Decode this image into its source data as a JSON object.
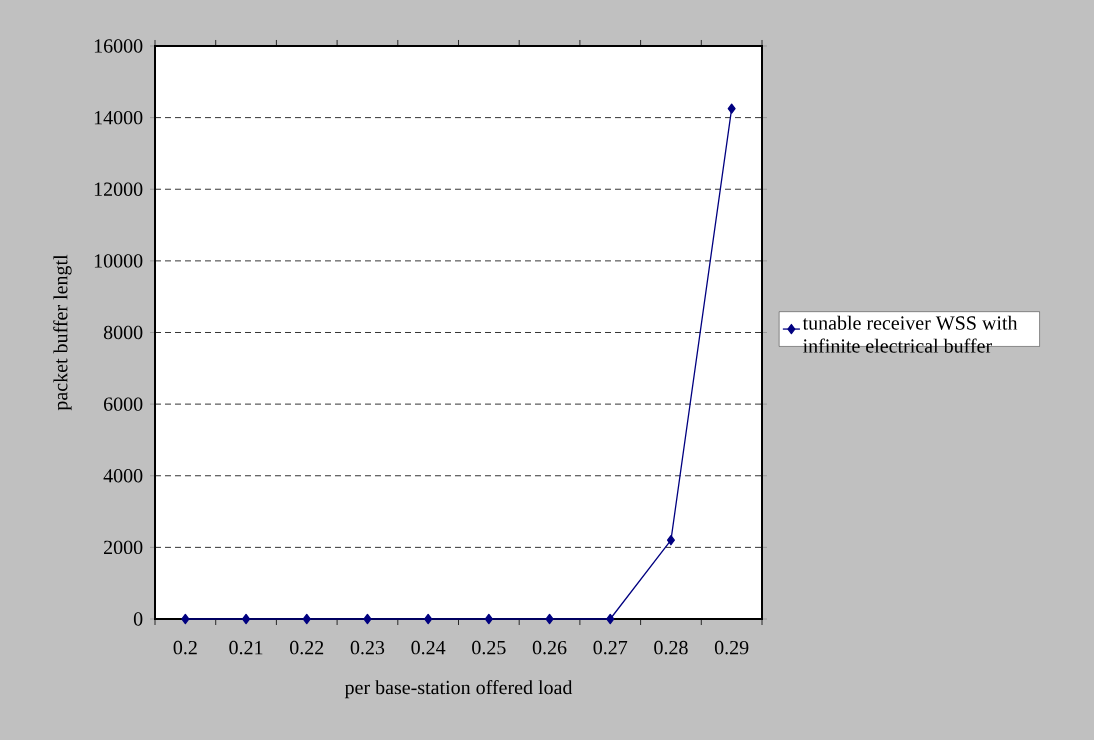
{
  "chart_data": {
    "type": "line",
    "xlabel": "per base-station offered load",
    "ylabel": "packet buffer lengtl",
    "categories": [
      "0.2",
      "0.21",
      "0.22",
      "0.23",
      "0.24",
      "0.25",
      "0.26",
      "0.27",
      "0.28",
      "0.29"
    ],
    "series": [
      {
        "name": "tunable receiver WSS with infinite electrical buffer",
        "color": "#000080",
        "values": [
          0,
          0,
          0,
          0,
          0,
          0,
          0,
          0,
          2200,
          14250
        ]
      }
    ],
    "ylim": [
      0,
      16000
    ],
    "yticks": [
      0,
      2000,
      4000,
      6000,
      8000,
      10000,
      12000,
      14000,
      16000
    ],
    "grid": "y",
    "legend": "right",
    "marker": "diamond",
    "line_style": "solid"
  }
}
